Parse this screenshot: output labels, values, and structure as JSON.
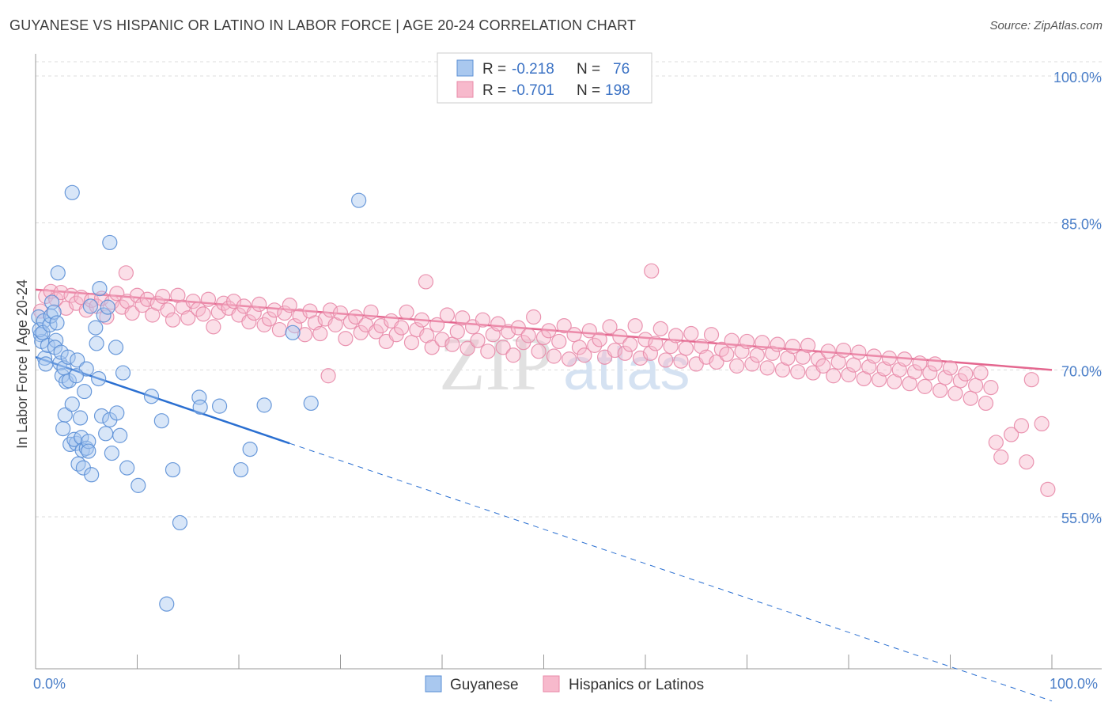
{
  "title": "GUYANESE VS HISPANIC OR LATINO IN LABOR FORCE | AGE 20-24 CORRELATION CHART",
  "source": "Source: ZipAtlas.com",
  "watermark": {
    "zip": "ZIP",
    "atlas": "atlas"
  },
  "colors": {
    "blue_fill": "#a9c8ef",
    "blue_stroke": "#5b8fd6",
    "blue_line": "#2a6fd1",
    "pink_fill": "#f7b9cc",
    "pink_stroke": "#e88aa8",
    "pink_line": "#e4678f",
    "tick_text": "#4a7ec8",
    "grid": "#dddddd"
  },
  "legend": {
    "r_label": "R =",
    "n_label": "N =",
    "rows": [
      {
        "r": "-0.218",
        "n": "76"
      },
      {
        "r": "-0.701",
        "n": "198"
      }
    ]
  },
  "bottom_legend": [
    "Guyanese",
    "Hispanics or Latinos"
  ],
  "chart_data": {
    "type": "scatter",
    "title": "GUYANESE VS HISPANIC OR LATINO IN LABOR FORCE | AGE 20-24 CORRELATION CHART",
    "xlabel": "",
    "ylabel": "In Labor Force | Age 20-24",
    "xlim": [
      0,
      100
    ],
    "ylim": [
      40,
      105
    ],
    "x_tick_labels": [
      "0.0%",
      "100.0%"
    ],
    "y_ticks": [
      55,
      70,
      85,
      100
    ],
    "y_tick_labels": [
      "55.0%",
      "70.0%",
      "85.0%",
      "100.0%"
    ],
    "series": [
      {
        "name": "Guyanese",
        "r": -0.218,
        "n": 76,
        "trend": {
          "x0": 0,
          "y0": 71.3,
          "x1": 25,
          "y1": 62.5,
          "dash_to_x": 100,
          "dash_to_y": 36.2
        },
        "points": [
          [
            0.3,
            75.4
          ],
          [
            0.5,
            73.6
          ],
          [
            0.6,
            72.9
          ],
          [
            0.4,
            74.1
          ],
          [
            0.8,
            75.0
          ],
          [
            0.9,
            71.2
          ],
          [
            1.0,
            70.6
          ],
          [
            1.2,
            72.5
          ],
          [
            0.7,
            73.8
          ],
          [
            1.4,
            74.6
          ],
          [
            1.6,
            76.9
          ],
          [
            1.5,
            75.5
          ],
          [
            1.8,
            75.9
          ],
          [
            2.0,
            73.0
          ],
          [
            1.9,
            72.3
          ],
          [
            2.2,
            79.9
          ],
          [
            2.4,
            70.7
          ],
          [
            2.5,
            71.8
          ],
          [
            2.6,
            69.4
          ],
          [
            2.8,
            70.2
          ],
          [
            3.0,
            68.8
          ],
          [
            3.2,
            71.3
          ],
          [
            3.3,
            68.9
          ],
          [
            2.7,
            64.0
          ],
          [
            2.9,
            65.4
          ],
          [
            3.6,
            66.5
          ],
          [
            3.4,
            62.4
          ],
          [
            4.0,
            62.5
          ],
          [
            3.8,
            62.9
          ],
          [
            4.2,
            60.4
          ],
          [
            4.5,
            63.1
          ],
          [
            4.6,
            61.8
          ],
          [
            4.7,
            60.0
          ],
          [
            4.4,
            65.1
          ],
          [
            5.0,
            62.0
          ],
          [
            5.2,
            62.7
          ],
          [
            4.8,
            67.8
          ],
          [
            5.5,
            59.3
          ],
          [
            4.1,
            71.0
          ],
          [
            5.0,
            70.1
          ],
          [
            5.4,
            76.5
          ],
          [
            5.9,
            74.3
          ],
          [
            6.2,
            69.1
          ],
          [
            6.5,
            65.3
          ],
          [
            6.9,
            63.5
          ],
          [
            7.3,
            64.9
          ],
          [
            7.5,
            61.5
          ],
          [
            8.0,
            65.6
          ],
          [
            8.3,
            63.3
          ],
          [
            6.0,
            72.7
          ],
          [
            6.3,
            78.3
          ],
          [
            6.7,
            75.6
          ],
          [
            7.1,
            76.4
          ],
          [
            7.9,
            72.3
          ],
          [
            8.6,
            69.7
          ],
          [
            9.0,
            60.0
          ],
          [
            10.1,
            58.2
          ],
          [
            11.4,
            67.3
          ],
          [
            12.4,
            64.8
          ],
          [
            13.5,
            59.8
          ],
          [
            14.2,
            54.4
          ],
          [
            16.1,
            67.2
          ],
          [
            18.1,
            66.3
          ],
          [
            20.2,
            59.8
          ],
          [
            21.1,
            61.9
          ],
          [
            22.5,
            66.4
          ],
          [
            25.3,
            73.8
          ],
          [
            12.9,
            46.1
          ],
          [
            16.2,
            66.2
          ],
          [
            27.1,
            66.6
          ],
          [
            7.3,
            83.0
          ],
          [
            3.6,
            88.1
          ],
          [
            31.8,
            87.3
          ],
          [
            5.2,
            61.7
          ],
          [
            4.0,
            69.4
          ],
          [
            2.1,
            74.8
          ]
        ]
      },
      {
        "name": "Hispanics or Latinos",
        "r": -0.701,
        "n": 198,
        "trend": {
          "x0": 0,
          "y0": 78.2,
          "x1": 100,
          "y1": 70.0
        },
        "points": [
          [
            0.5,
            76.0
          ],
          [
            1.0,
            77.5
          ],
          [
            1.5,
            78.0
          ],
          [
            2.0,
            77.2
          ],
          [
            2.5,
            77.9
          ],
          [
            3.0,
            76.3
          ],
          [
            3.5,
            77.6
          ],
          [
            4.0,
            76.8
          ],
          [
            4.5,
            77.4
          ],
          [
            5.0,
            76.1
          ],
          [
            5.5,
            77.1
          ],
          [
            6.0,
            76.5
          ],
          [
            6.5,
            77.3
          ],
          [
            7.0,
            75.4
          ],
          [
            7.5,
            76.9
          ],
          [
            8.0,
            77.8
          ],
          [
            8.5,
            76.4
          ],
          [
            9.0,
            77.0
          ],
          [
            9.5,
            75.8
          ],
          [
            10.0,
            77.6
          ],
          [
            10.5,
            76.6
          ],
          [
            11.0,
            77.2
          ],
          [
            11.5,
            75.6
          ],
          [
            12.0,
            76.8
          ],
          [
            12.5,
            77.5
          ],
          [
            13.0,
            76.1
          ],
          [
            13.5,
            75.1
          ],
          [
            14.0,
            77.6
          ],
          [
            14.5,
            76.4
          ],
          [
            15.0,
            75.3
          ],
          [
            15.5,
            77.0
          ],
          [
            16.0,
            76.2
          ],
          [
            16.5,
            75.7
          ],
          [
            17.0,
            77.2
          ],
          [
            17.5,
            74.4
          ],
          [
            18.0,
            75.9
          ],
          [
            18.5,
            76.8
          ],
          [
            19.0,
            76.3
          ],
          [
            19.5,
            77.0
          ],
          [
            20.0,
            75.6
          ],
          [
            20.5,
            76.5
          ],
          [
            21.0,
            74.9
          ],
          [
            21.5,
            75.8
          ],
          [
            22.0,
            76.7
          ],
          [
            22.5,
            74.6
          ],
          [
            23.0,
            75.2
          ],
          [
            23.5,
            76.1
          ],
          [
            24.0,
            74.1
          ],
          [
            24.5,
            75.8
          ],
          [
            25.0,
            76.6
          ],
          [
            25.5,
            74.5
          ],
          [
            26.0,
            75.5
          ],
          [
            26.5,
            73.6
          ],
          [
            27.0,
            76.0
          ],
          [
            27.5,
            74.8
          ],
          [
            28.0,
            73.7
          ],
          [
            28.5,
            75.2
          ],
          [
            29.0,
            76.1
          ],
          [
            29.5,
            74.6
          ],
          [
            30.0,
            75.8
          ],
          [
            30.5,
            73.2
          ],
          [
            31.0,
            74.9
          ],
          [
            31.5,
            75.4
          ],
          [
            32.0,
            73.8
          ],
          [
            32.5,
            74.6
          ],
          [
            33.0,
            75.9
          ],
          [
            33.5,
            73.9
          ],
          [
            34.0,
            74.5
          ],
          [
            34.5,
            72.9
          ],
          [
            35.0,
            75.0
          ],
          [
            35.5,
            73.6
          ],
          [
            36.0,
            74.3
          ],
          [
            36.5,
            75.9
          ],
          [
            37.0,
            72.8
          ],
          [
            37.5,
            74.1
          ],
          [
            38.0,
            75.1
          ],
          [
            38.5,
            73.5
          ],
          [
            39.0,
            72.3
          ],
          [
            39.5,
            74.6
          ],
          [
            40.0,
            73.1
          ],
          [
            40.5,
            75.6
          ],
          [
            41.0,
            72.6
          ],
          [
            41.5,
            73.9
          ],
          [
            42.0,
            75.3
          ],
          [
            42.5,
            72.2
          ],
          [
            43.0,
            74.4
          ],
          [
            43.5,
            73.0
          ],
          [
            44.0,
            75.1
          ],
          [
            44.5,
            71.9
          ],
          [
            45.0,
            73.6
          ],
          [
            45.5,
            74.7
          ],
          [
            46.0,
            72.3
          ],
          [
            46.5,
            73.9
          ],
          [
            47.0,
            71.5
          ],
          [
            47.5,
            74.3
          ],
          [
            48.0,
            72.8
          ],
          [
            48.5,
            73.5
          ],
          [
            49.0,
            75.4
          ],
          [
            49.5,
            71.9
          ],
          [
            50.0,
            73.3
          ],
          [
            50.5,
            74.0
          ],
          [
            51.0,
            71.4
          ],
          [
            51.5,
            72.9
          ],
          [
            52.0,
            74.5
          ],
          [
            52.5,
            71.1
          ],
          [
            53.0,
            73.6
          ],
          [
            53.5,
            72.3
          ],
          [
            54.0,
            71.5
          ],
          [
            54.5,
            74.0
          ],
          [
            55.0,
            72.5
          ],
          [
            55.5,
            73.1
          ],
          [
            56.0,
            71.3
          ],
          [
            56.5,
            74.4
          ],
          [
            57.0,
            72.0
          ],
          [
            57.5,
            73.4
          ],
          [
            58.0,
            71.7
          ],
          [
            58.5,
            72.6
          ],
          [
            59.0,
            74.5
          ],
          [
            59.5,
            71.2
          ],
          [
            60.0,
            73.1
          ],
          [
            60.5,
            71.7
          ],
          [
            61.0,
            72.7
          ],
          [
            61.5,
            74.2
          ],
          [
            62.0,
            71.0
          ],
          [
            62.5,
            72.4
          ],
          [
            63.0,
            73.5
          ],
          [
            63.5,
            70.9
          ],
          [
            64.0,
            72.2
          ],
          [
            64.5,
            73.7
          ],
          [
            65.0,
            70.6
          ],
          [
            65.5,
            72.4
          ],
          [
            66.0,
            71.3
          ],
          [
            66.5,
            73.6
          ],
          [
            67.0,
            70.8
          ],
          [
            67.5,
            72.1
          ],
          [
            68.0,
            71.6
          ],
          [
            68.5,
            73.0
          ],
          [
            69.0,
            70.4
          ],
          [
            69.5,
            71.9
          ],
          [
            70.0,
            72.9
          ],
          [
            70.5,
            70.6
          ],
          [
            71.0,
            71.5
          ],
          [
            71.5,
            72.8
          ],
          [
            72.0,
            70.2
          ],
          [
            72.5,
            71.7
          ],
          [
            73.0,
            72.6
          ],
          [
            73.5,
            70.0
          ],
          [
            74.0,
            71.2
          ],
          [
            74.5,
            72.4
          ],
          [
            75.0,
            69.8
          ],
          [
            75.5,
            71.3
          ],
          [
            76.0,
            72.5
          ],
          [
            76.5,
            69.7
          ],
          [
            77.0,
            71.1
          ],
          [
            77.5,
            70.4
          ],
          [
            78.0,
            71.9
          ],
          [
            78.5,
            69.4
          ],
          [
            79.0,
            70.8
          ],
          [
            79.5,
            72.0
          ],
          [
            80.0,
            69.5
          ],
          [
            80.5,
            70.5
          ],
          [
            81.0,
            71.8
          ],
          [
            81.5,
            69.1
          ],
          [
            82.0,
            70.3
          ],
          [
            82.5,
            71.4
          ],
          [
            83.0,
            69.0
          ],
          [
            83.5,
            70.1
          ],
          [
            84.0,
            71.2
          ],
          [
            84.5,
            68.8
          ],
          [
            85.0,
            70.0
          ],
          [
            85.5,
            71.1
          ],
          [
            86.0,
            68.6
          ],
          [
            86.5,
            69.8
          ],
          [
            87.0,
            70.7
          ],
          [
            87.5,
            68.3
          ],
          [
            88.0,
            69.7
          ],
          [
            88.5,
            70.6
          ],
          [
            89.0,
            67.9
          ],
          [
            89.5,
            69.2
          ],
          [
            90.0,
            70.2
          ],
          [
            90.5,
            67.6
          ],
          [
            91.0,
            68.9
          ],
          [
            91.5,
            69.6
          ],
          [
            92.0,
            67.1
          ],
          [
            92.5,
            68.4
          ],
          [
            93.0,
            69.7
          ],
          [
            93.5,
            66.6
          ],
          [
            94.0,
            68.2
          ],
          [
            94.5,
            62.6
          ],
          [
            95.0,
            61.1
          ],
          [
            96.0,
            63.4
          ],
          [
            97.0,
            64.3
          ],
          [
            97.5,
            60.6
          ],
          [
            98.0,
            69.0
          ],
          [
            99.0,
            64.5
          ],
          [
            99.6,
            57.8
          ],
          [
            60.6,
            80.1
          ],
          [
            38.4,
            79.0
          ],
          [
            28.8,
            69.4
          ],
          [
            8.9,
            79.9
          ]
        ]
      }
    ]
  }
}
